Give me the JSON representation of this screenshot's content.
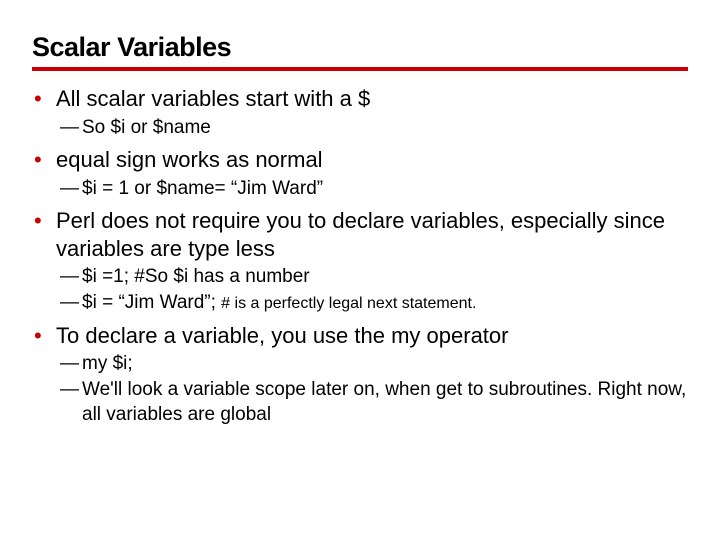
{
  "title": "Scalar Variables",
  "rule_color": "#cc0000",
  "bullet_color": "#cc0000",
  "bullets": [
    {
      "text": "All scalar variables start with a $",
      "subs": [
        {
          "text": "So $i  or $name"
        }
      ]
    },
    {
      "text": "equal sign works as normal",
      "subs": [
        {
          "text": "$i = 1 or   $name= “Jim Ward”"
        }
      ]
    },
    {
      "text": "Perl does not require you to declare variables, especially since variables are type less",
      "subs": [
        {
          "text": "$i =1;  #So $i has a number"
        },
        {
          "prefix": "$i = “Jim Ward”; ",
          "small": "# is a perfectly legal next statement."
        }
      ]
    },
    {
      "text": "To declare a variable, you use the my operator",
      "subs": [
        {
          "text": "my $i;"
        },
        {
          "text": "We'll look a variable scope later on, when get to subroutines.  Right now, all variables are global"
        }
      ]
    }
  ]
}
